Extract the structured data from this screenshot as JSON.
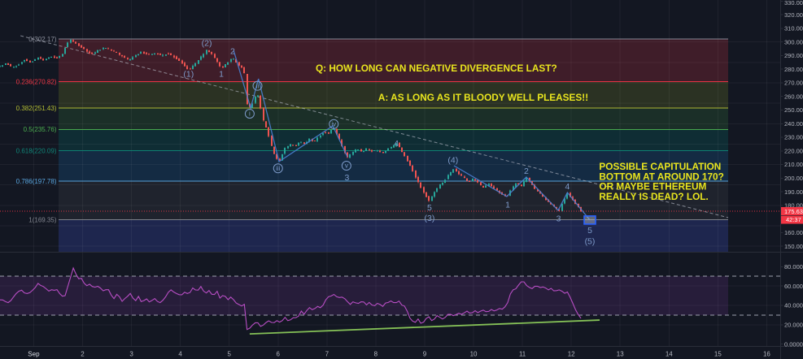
{
  "colors": {
    "background": "#131722",
    "candle_up": "#26a69a",
    "candle_down": "#ef5350",
    "zigzag": "#4a7fd3",
    "wave_label": "#7d9ac9",
    "annotation": "#e9e51e",
    "price_line": "#f23645",
    "badge": "#f23645",
    "rsi_line": "#b84ec4",
    "rsi_band_line": "#b6bac6",
    "rsi_fill": "rgba(155,65,200,0.15)",
    "green_trendline": "#85c157",
    "trendline_dashed": "#b8bcc8",
    "axis_text": "#b2b5be",
    "grid": "rgba(255,255,255,0.05)",
    "separator": "#2a2e39",
    "selection_border": "#2962ff",
    "selection_fill": "rgba(180,190,210,0.45)"
  },
  "chart_data": {
    "type": "candlestick_with_rsi",
    "last_price": 175.63,
    "countdown": "42:37",
    "price_axis": {
      "ticks": [
        330,
        320,
        310,
        300,
        290,
        280,
        270,
        260,
        250,
        240,
        230,
        220,
        210,
        200,
        190,
        180,
        170,
        160,
        150
      ],
      "gridlines": [
        300,
        285,
        270,
        255,
        240,
        225,
        210,
        195,
        180,
        165,
        150
      ]
    },
    "time_axis": {
      "labels": [
        "Sep",
        "2",
        "3",
        "4",
        "5",
        "6",
        "7",
        "8",
        "9",
        "10",
        "11",
        "12",
        "13",
        "14",
        "15",
        "16"
      ]
    },
    "fib": {
      "start_day": 1.51,
      "end_day": 15.21,
      "levels": [
        {
          "label": "0(302.17)",
          "price": 302.17,
          "color": "#8b8f9c"
        },
        {
          "label": "0.236(270.82)",
          "price": 270.82,
          "color": "#f23645"
        },
        {
          "label": "0.382(251.43)",
          "price": 251.43,
          "color": "#b3bd34"
        },
        {
          "label": "0.5(235.76)",
          "price": 235.76,
          "color": "#4caf50"
        },
        {
          "label": "0.618(220.09)",
          "price": 220.09,
          "color": "#0f8578"
        },
        {
          "label": "0.786(197.78)",
          "price": 197.78,
          "color": "#5aa7e0"
        },
        {
          "label": "1(169.35)",
          "price": 169.35,
          "color": "#82858f"
        }
      ],
      "band_fills": [
        "rgba(242,54,69,0.20)",
        "rgba(169,182,44,0.17)",
        "rgba(67,160,71,0.18)",
        "rgba(0,150,136,0.18)",
        "rgba(33,150,243,0.16)",
        "rgba(120,123,134,0.12)"
      ],
      "below_fill": "rgba(57,73,171,0.32)"
    },
    "candles_per_day": 18,
    "price_path": [
      [
        0.31,
        282
      ],
      [
        0.44,
        284.5
      ],
      [
        0.54,
        281.5
      ],
      [
        0.68,
        283
      ],
      [
        0.81,
        287
      ],
      [
        0.94,
        285
      ],
      [
        1.08,
        288.5
      ],
      [
        1.21,
        286.5
      ],
      [
        1.34,
        289.5
      ],
      [
        1.48,
        288
      ],
      [
        1.58,
        291
      ],
      [
        1.73,
        302.2
      ],
      [
        1.89,
        298
      ],
      [
        2.06,
        294
      ],
      [
        2.18,
        291
      ],
      [
        2.31,
        293.5
      ],
      [
        2.44,
        296
      ],
      [
        2.58,
        294
      ],
      [
        2.71,
        291.5
      ],
      [
        2.84,
        289
      ],
      [
        2.94,
        286.5
      ],
      [
        3.07,
        290
      ],
      [
        3.21,
        292.5
      ],
      [
        3.34,
        290.5
      ],
      [
        3.47,
        292
      ],
      [
        3.61,
        290
      ],
      [
        3.74,
        291.5
      ],
      [
        3.87,
        289
      ],
      [
        4.01,
        285
      ],
      [
        4.17,
        279.5
      ],
      [
        4.31,
        284
      ],
      [
        4.44,
        290
      ],
      [
        4.54,
        294.5
      ],
      [
        4.67,
        290
      ],
      [
        4.84,
        280.5
      ],
      [
        4.97,
        285
      ],
      [
        5.07,
        288.5
      ],
      [
        5.21,
        282
      ],
      [
        5.3,
        281
      ],
      [
        5.36,
        255
      ],
      [
        5.44,
        251.5
      ],
      [
        5.5,
        257
      ],
      [
        5.57,
        263.5
      ],
      [
        5.64,
        252
      ],
      [
        5.7,
        242
      ],
      [
        5.77,
        236
      ],
      [
        5.84,
        227
      ],
      [
        5.9,
        219
      ],
      [
        6.02,
        212
      ],
      [
        6.14,
        222
      ],
      [
        6.24,
        225
      ],
      [
        6.34,
        223
      ],
      [
        6.44,
        227
      ],
      [
        6.54,
        225
      ],
      [
        6.64,
        229
      ],
      [
        6.74,
        227
      ],
      [
        6.84,
        231
      ],
      [
        6.94,
        234
      ],
      [
        7.04,
        232.5
      ],
      [
        7.12,
        238
      ],
      [
        7.19,
        233
      ],
      [
        7.27,
        227
      ],
      [
        7.35,
        220
      ],
      [
        7.42,
        215.5
      ],
      [
        7.52,
        219
      ],
      [
        7.62,
        221.5
      ],
      [
        7.72,
        219
      ],
      [
        7.82,
        222
      ],
      [
        7.92,
        219.5
      ],
      [
        8.02,
        221
      ],
      [
        8.12,
        218.5
      ],
      [
        8.22,
        221
      ],
      [
        8.32,
        223
      ],
      [
        8.42,
        225.5
      ],
      [
        8.52,
        220
      ],
      [
        8.62,
        214
      ],
      [
        8.72,
        208
      ],
      [
        8.82,
        200
      ],
      [
        8.92,
        193
      ],
      [
        9.0,
        188
      ],
      [
        9.1,
        183
      ],
      [
        9.2,
        190
      ],
      [
        9.3,
        195
      ],
      [
        9.4,
        198
      ],
      [
        9.5,
        203
      ],
      [
        9.6,
        207
      ],
      [
        9.7,
        203
      ],
      [
        9.8,
        200
      ],
      [
        9.9,
        197
      ],
      [
        10.0,
        200
      ],
      [
        10.1,
        196
      ],
      [
        10.2,
        193
      ],
      [
        10.3,
        196
      ],
      [
        10.4,
        193
      ],
      [
        10.5,
        190
      ],
      [
        10.6,
        188
      ],
      [
        10.68,
        186.3
      ],
      [
        10.77,
        192
      ],
      [
        10.87,
        196
      ],
      [
        10.97,
        194
      ],
      [
        11.08,
        200.5
      ],
      [
        11.18,
        196
      ],
      [
        11.28,
        191
      ],
      [
        11.38,
        188
      ],
      [
        11.48,
        184
      ],
      [
        11.58,
        181
      ],
      [
        11.68,
        178
      ],
      [
        11.75,
        175.6
      ],
      [
        11.8,
        180
      ],
      [
        11.85,
        184
      ],
      [
        11.91,
        189.3
      ],
      [
        11.98,
        186
      ],
      [
        12.05,
        183
      ],
      [
        12.11,
        180
      ],
      [
        12.18,
        177
      ],
      [
        12.23,
        175.6
      ]
    ],
    "rsi": {
      "bands": [
        70,
        30
      ],
      "ticks": [
        80,
        60,
        40,
        20,
        0
      ],
      "gridlines": [
        60,
        40,
        20
      ],
      "path": [
        [
          0.31,
          46
        ],
        [
          0.48,
          42
        ],
        [
          0.73,
          57
        ],
        [
          0.84,
          52
        ],
        [
          0.98,
          55
        ],
        [
          1.09,
          63
        ],
        [
          1.19,
          60
        ],
        [
          1.28,
          55
        ],
        [
          1.39,
          57
        ],
        [
          1.51,
          55
        ],
        [
          1.56,
          48
        ],
        [
          1.64,
          50
        ],
        [
          1.73,
          65
        ],
        [
          1.81,
          79
        ],
        [
          1.89,
          68
        ],
        [
          1.98,
          67
        ],
        [
          2.06,
          60
        ],
        [
          2.14,
          62
        ],
        [
          2.23,
          57
        ],
        [
          2.31,
          60
        ],
        [
          2.43,
          55
        ],
        [
          2.52,
          57
        ],
        [
          2.64,
          47
        ],
        [
          2.72,
          52
        ],
        [
          2.81,
          45
        ],
        [
          2.89,
          49
        ],
        [
          2.97,
          52
        ],
        [
          3.09,
          45
        ],
        [
          3.14,
          49
        ],
        [
          3.22,
          43
        ],
        [
          3.31,
          47
        ],
        [
          3.39,
          43
        ],
        [
          3.47,
          47
        ],
        [
          3.56,
          42
        ],
        [
          3.64,
          45
        ],
        [
          3.72,
          51
        ],
        [
          3.81,
          56
        ],
        [
          3.89,
          52
        ],
        [
          4.01,
          50
        ],
        [
          4.09,
          54
        ],
        [
          4.17,
          51
        ],
        [
          4.26,
          59
        ],
        [
          4.34,
          55
        ],
        [
          4.42,
          60
        ],
        [
          4.51,
          52
        ],
        [
          4.59,
          56
        ],
        [
          4.67,
          50
        ],
        [
          4.76,
          54
        ],
        [
          4.81,
          47
        ],
        [
          4.89,
          52
        ],
        [
          4.97,
          45
        ],
        [
          5.05,
          49
        ],
        [
          5.14,
          43
        ],
        [
          5.22,
          39
        ],
        [
          5.31,
          41
        ],
        [
          5.34,
          17
        ],
        [
          5.39,
          14
        ],
        [
          5.47,
          20
        ],
        [
          5.56,
          23
        ],
        [
          5.64,
          18
        ],
        [
          5.72,
          21
        ],
        [
          5.8,
          24
        ],
        [
          5.89,
          21
        ],
        [
          5.97,
          25
        ],
        [
          6.05,
          22
        ],
        [
          6.14,
          27
        ],
        [
          6.22,
          24
        ],
        [
          6.3,
          28
        ],
        [
          6.39,
          26
        ],
        [
          6.47,
          34
        ],
        [
          6.55,
          31
        ],
        [
          6.64,
          38
        ],
        [
          6.72,
          35
        ],
        [
          6.8,
          39
        ],
        [
          6.89,
          36
        ],
        [
          6.97,
          45
        ],
        [
          7.05,
          49
        ],
        [
          7.14,
          52
        ],
        [
          7.22,
          47
        ],
        [
          7.3,
          50
        ],
        [
          7.39,
          45
        ],
        [
          7.47,
          40
        ],
        [
          7.55,
          44
        ],
        [
          7.64,
          41
        ],
        [
          7.72,
          45
        ],
        [
          7.8,
          40
        ],
        [
          7.88,
          43
        ],
        [
          7.97,
          39
        ],
        [
          8.05,
          42
        ],
        [
          8.13,
          38
        ],
        [
          8.22,
          43
        ],
        [
          8.3,
          45
        ],
        [
          8.38,
          42
        ],
        [
          8.47,
          44
        ],
        [
          8.55,
          40
        ],
        [
          8.63,
          37
        ],
        [
          8.68,
          28
        ],
        [
          8.75,
          24
        ],
        [
          8.8,
          21
        ],
        [
          8.88,
          26
        ],
        [
          8.93,
          20
        ],
        [
          9.02,
          25
        ],
        [
          9.08,
          28
        ],
        [
          9.17,
          23
        ],
        [
          9.22,
          27
        ],
        [
          9.27,
          30
        ],
        [
          9.35,
          25
        ],
        [
          9.43,
          28
        ],
        [
          9.52,
          32
        ],
        [
          9.6,
          29
        ],
        [
          9.68,
          32
        ],
        [
          9.77,
          30
        ],
        [
          9.85,
          34
        ],
        [
          9.93,
          31
        ],
        [
          10.02,
          35
        ],
        [
          10.1,
          32
        ],
        [
          10.18,
          35
        ],
        [
          10.27,
          33
        ],
        [
          10.35,
          36
        ],
        [
          10.43,
          34
        ],
        [
          10.52,
          38
        ],
        [
          10.6,
          36
        ],
        [
          10.68,
          39
        ],
        [
          10.77,
          55
        ],
        [
          10.85,
          57
        ],
        [
          10.93,
          61
        ],
        [
          11.02,
          66
        ],
        [
          11.1,
          60
        ],
        [
          11.18,
          57
        ],
        [
          11.27,
          61
        ],
        [
          11.35,
          58
        ],
        [
          11.43,
          60
        ],
        [
          11.51,
          55
        ],
        [
          11.6,
          58
        ],
        [
          11.68,
          54
        ],
        [
          11.76,
          57
        ],
        [
          11.85,
          52
        ],
        [
          11.91,
          55
        ],
        [
          12.0,
          46
        ],
        [
          12.05,
          40
        ],
        [
          12.1,
          35
        ],
        [
          12.16,
          28
        ],
        [
          12.2,
          26
        ]
      ]
    },
    "green_trendline": {
      "from": {
        "day": 5.42,
        "value": 10.5
      },
      "to": {
        "day": 12.58,
        "value": 24.8
      }
    },
    "dashed_trendline": {
      "from": {
        "day": 0.73,
        "price": 304.6
      },
      "to": {
        "day": 15.21,
        "price": 171.0
      }
    },
    "zigzags": [
      {
        "points": [
          [
            5.09,
            293.9
          ],
          [
            5.44,
            251.5
          ],
          [
            5.6,
            273.0
          ],
          [
            6.02,
            212.1
          ],
          [
            7.12,
            238.4
          ],
          [
            7.42,
            215.7
          ]
        ]
      },
      {
        "points": [
          [
            9.6,
            209.1
          ],
          [
            10.68,
            186.5
          ],
          [
            11.08,
            200.8
          ],
          [
            11.73,
            176.3
          ],
          [
            11.92,
            189.4
          ],
          [
            12.38,
            169.2
          ]
        ]
      }
    ],
    "selection_box": {
      "day": 12.38,
      "price": 169.2,
      "width": 14,
      "height": 10
    },
    "wave_labels": [
      {
        "text": "(2)",
        "day": 4.54,
        "price": 299.4,
        "circled": false
      },
      {
        "text": "2",
        "day": 5.07,
        "price": 293.4,
        "circled": false
      },
      {
        "text": "(1)",
        "day": 4.17,
        "price": 276.6,
        "circled": false
      },
      {
        "text": "1",
        "day": 4.84,
        "price": 276.6,
        "circled": false
      },
      {
        "text": "ii",
        "day": 5.58,
        "price": 267.8,
        "circled": true
      },
      {
        "text": "i",
        "day": 5.42,
        "price": 247.3,
        "circled": true
      },
      {
        "text": "iii",
        "day": 6.0,
        "price": 207.2,
        "circled": true
      },
      {
        "text": "iv",
        "day": 7.14,
        "price": 239.7,
        "circled": true
      },
      {
        "text": "v",
        "day": 7.4,
        "price": 209.1,
        "circled": true
      },
      {
        "text": "3",
        "day": 7.41,
        "price": 200.6,
        "circled": false
      },
      {
        "text": "4",
        "day": 8.42,
        "price": 225.8,
        "circled": false
      },
      {
        "text": "5",
        "day": 9.1,
        "price": 178.7,
        "circled": false
      },
      {
        "text": "(3)",
        "day": 9.1,
        "price": 170.8,
        "circled": false
      },
      {
        "text": "(4)",
        "day": 9.58,
        "price": 213.5,
        "circled": false
      },
      {
        "text": "1",
        "day": 10.7,
        "price": 180.7,
        "circled": false
      },
      {
        "text": "2",
        "day": 11.08,
        "price": 205.5,
        "circled": false
      },
      {
        "text": "3",
        "day": 11.74,
        "price": 170.5,
        "circled": false
      },
      {
        "text": "4",
        "day": 11.92,
        "price": 194.2,
        "circled": false
      },
      {
        "text": "5",
        "day": 12.38,
        "price": 161.8,
        "circled": false
      },
      {
        "text": "(5)",
        "day": 12.38,
        "price": 153.8,
        "circled": false
      }
    ],
    "annotations": [
      {
        "lines": [
          "Q: HOW LONG CAN NEGATIVE DIVERGENCE LAST?"
        ],
        "day": 6.77,
        "price": 280.7
      },
      {
        "lines": [
          "A: AS LONG AS IT BLOODY WELL PLEASES!!"
        ],
        "day": 8.05,
        "price": 259.2
      },
      {
        "lines": [
          "POSSIBLE CAPITULATION",
          "BOTTOM AT AROUND 170?",
          "OR MAYBE ETHEREUM",
          "REALLY IS DEAD? LOL."
        ],
        "day": 12.57,
        "price": 208.5
      }
    ]
  }
}
